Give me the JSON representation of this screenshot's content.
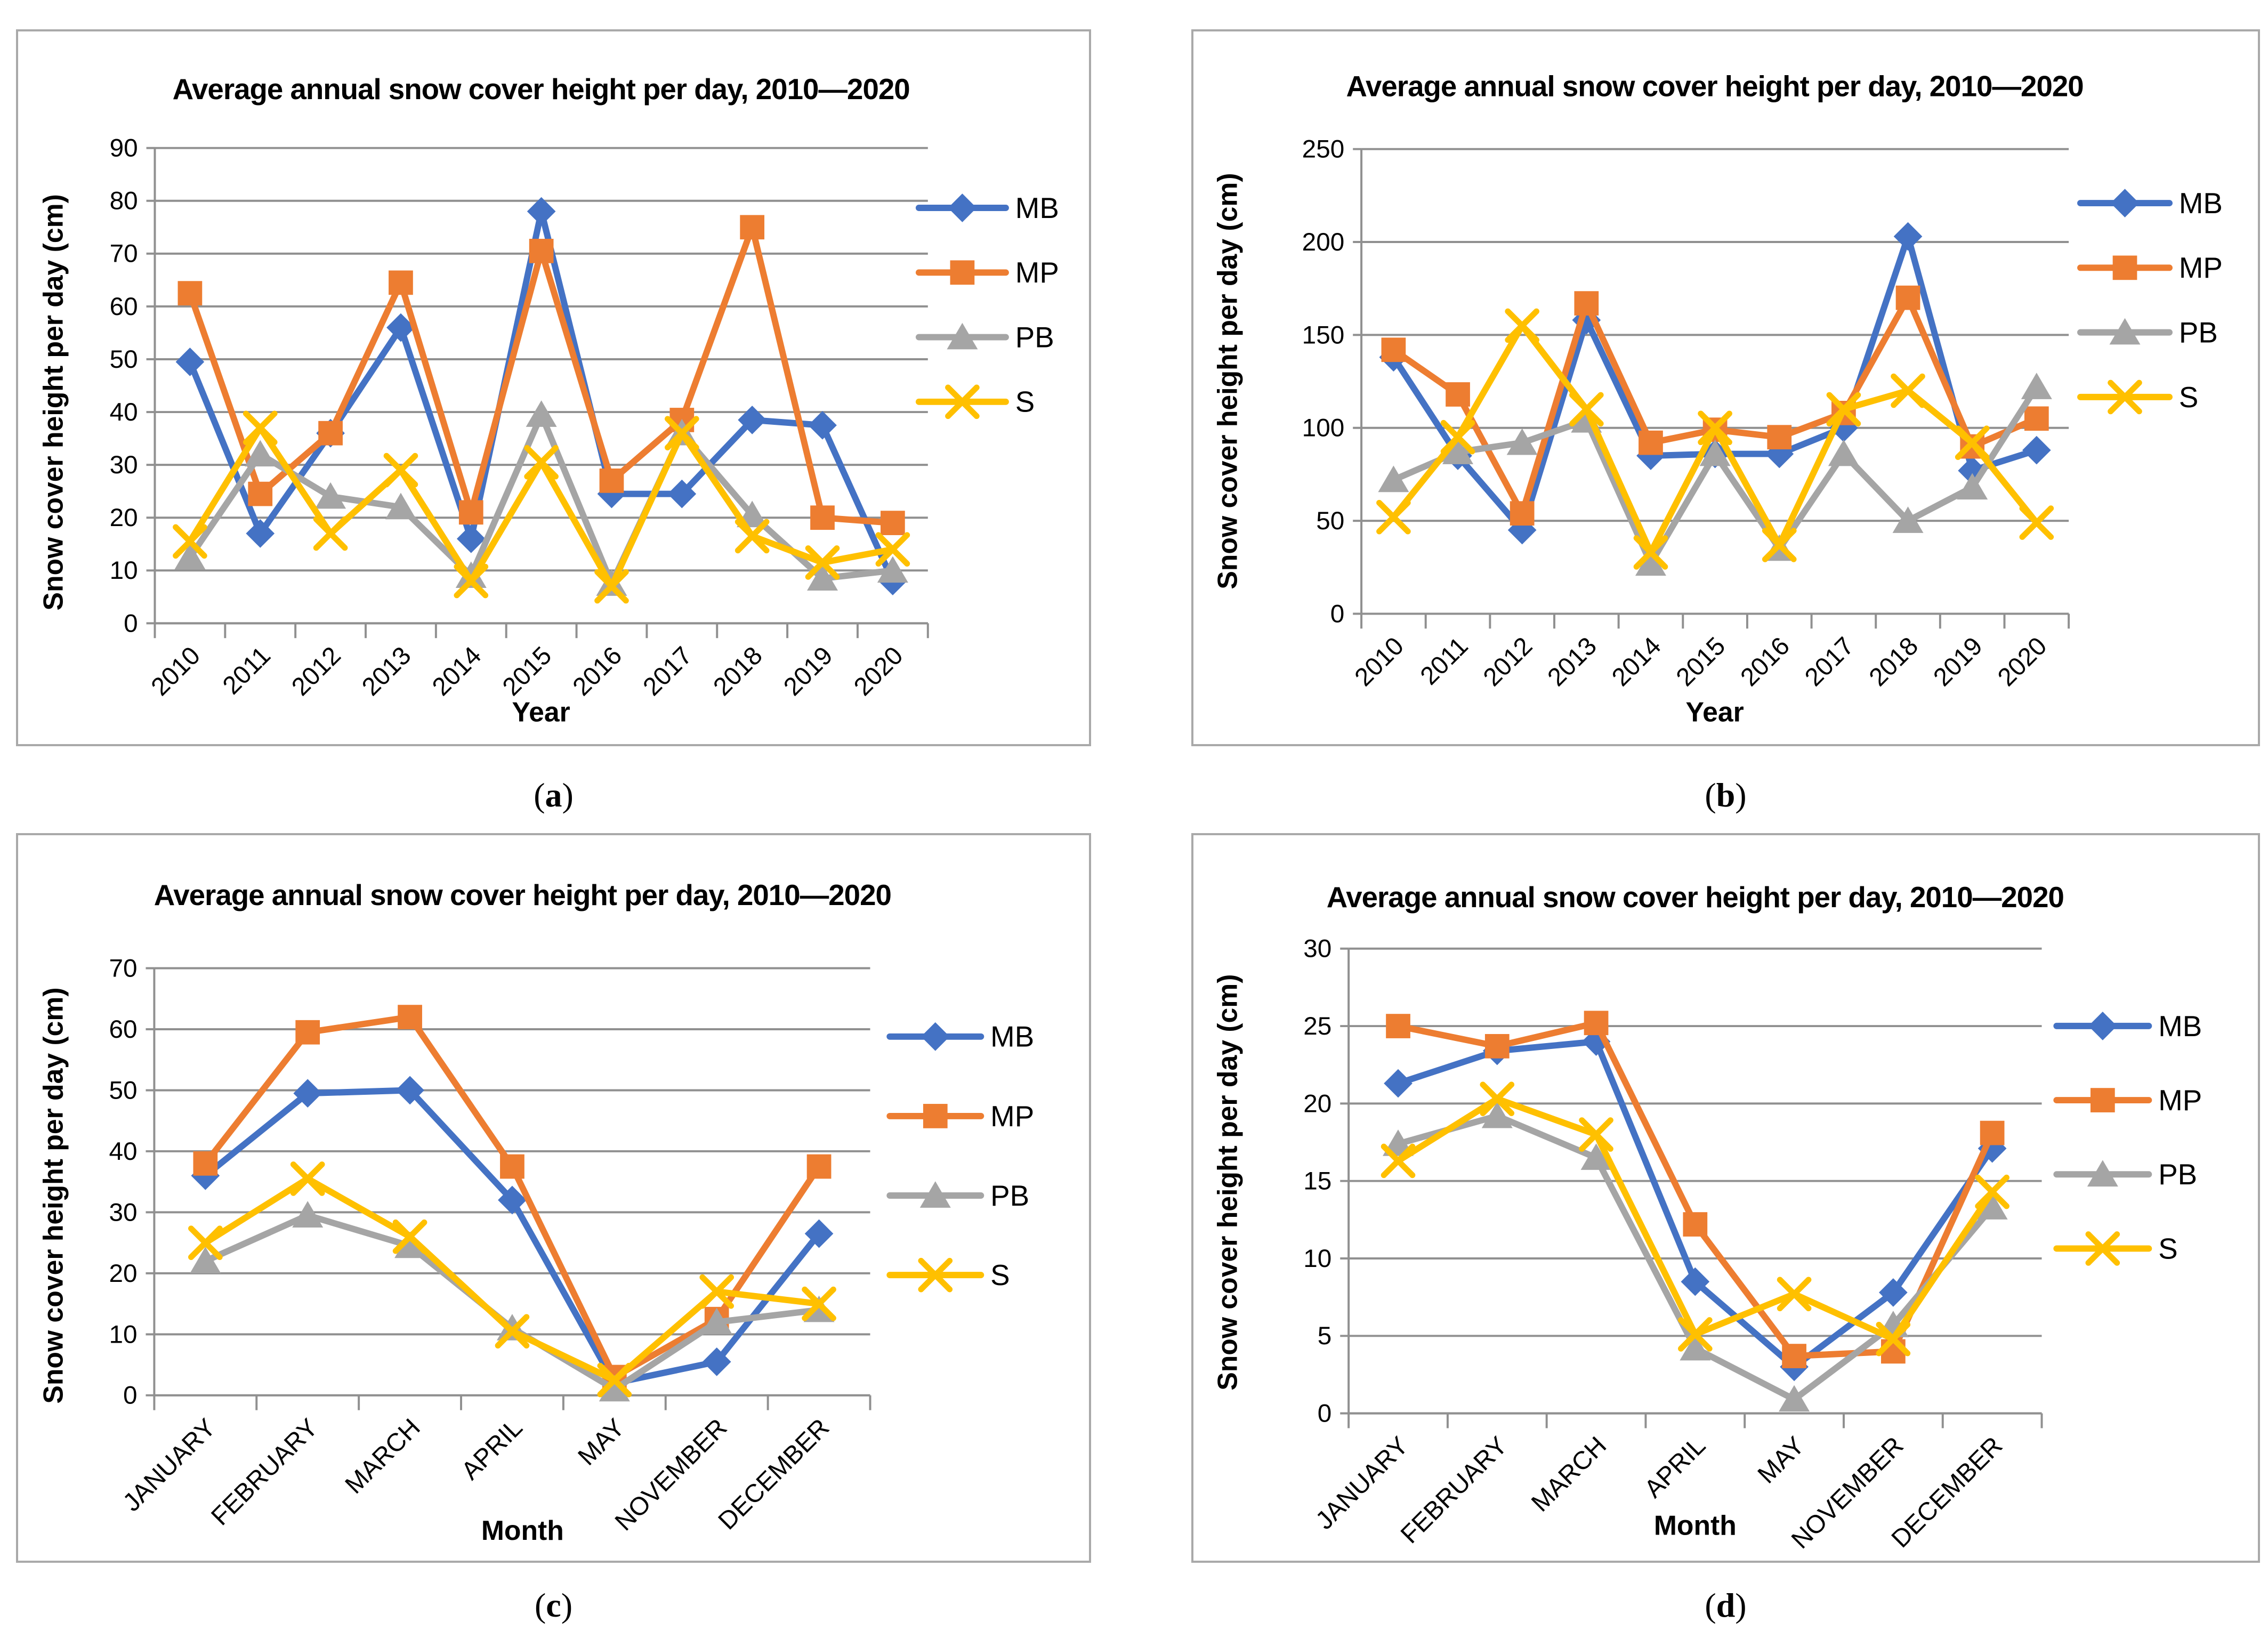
{
  "figure": {
    "captions": [
      {
        "open": "(",
        "letter": "a",
        "close": ")"
      },
      {
        "open": "(",
        "letter": "b",
        "close": ")"
      },
      {
        "open": "(",
        "letter": "c",
        "close": ")"
      },
      {
        "open": "(",
        "letter": "d",
        "close": ")"
      }
    ],
    "colors": {
      "MB": "#4472C4",
      "MP": "#ED7D31",
      "PB": "#A5A5A5",
      "S": "#FFC000"
    },
    "grid_color": "#909090"
  },
  "chart_data": [
    {
      "id": "a",
      "type": "line",
      "title": "Average annual snow cover height per day, 2010—2020",
      "xlabel": "Year",
      "ylabel": "Snow cover height per day (cm)",
      "ylim": [
        0,
        90
      ],
      "y_ticks": [
        0,
        10,
        20,
        30,
        40,
        50,
        60,
        70,
        80,
        90
      ],
      "grid": true,
      "legend_position": "right",
      "categories": [
        "2010",
        "2011",
        "2012",
        "2013",
        "2014",
        "2015",
        "2016",
        "2017",
        "2018",
        "2019",
        "2020"
      ],
      "series": [
        {
          "name": "MB",
          "color": "#4472C4",
          "marker": "diamond",
          "values": [
            49.5,
            17,
            36,
            56,
            16,
            78,
            24.5,
            24.5,
            38.5,
            37.5,
            8
          ]
        },
        {
          "name": "MP",
          "color": "#ED7D31",
          "marker": "square",
          "values": [
            62.5,
            24.5,
            36,
            64.5,
            21,
            70.5,
            27,
            38.5,
            75,
            20,
            19
          ]
        },
        {
          "name": "PB",
          "color": "#A5A5A5",
          "marker": "triangle",
          "values": [
            12.5,
            32,
            24,
            22,
            9,
            39.5,
            7.5,
            36,
            20.5,
            8.5,
            10
          ]
        },
        {
          "name": "S",
          "color": "#FFC000",
          "marker": "x",
          "values": [
            15.5,
            37,
            17,
            29,
            8,
            30.5,
            7,
            36,
            16.5,
            11.5,
            14
          ]
        }
      ]
    },
    {
      "id": "b",
      "type": "line",
      "title": "Average annual snow cover height per day, 2010—2020",
      "xlabel": "Year",
      "ylabel": "Snow cover height per day (cm)",
      "ylim": [
        0,
        250
      ],
      "y_ticks": [
        0,
        50,
        100,
        150,
        200,
        250
      ],
      "grid": true,
      "legend_position": "right",
      "categories": [
        "2010",
        "2011",
        "2012",
        "2013",
        "2014",
        "2015",
        "2016",
        "2017",
        "2018",
        "2019",
        "2020"
      ],
      "series": [
        {
          "name": "MB",
          "color": "#4472C4",
          "marker": "diamond",
          "values": [
            138,
            85,
            45,
            158,
            85,
            86,
            86,
            100,
            203,
            77,
            88
          ]
        },
        {
          "name": "MP",
          "color": "#ED7D31",
          "marker": "square",
          "values": [
            142,
            118,
            54,
            167,
            92,
            99,
            95,
            108,
            170,
            90,
            105
          ]
        },
        {
          "name": "PB",
          "color": "#A5A5A5",
          "marker": "triangle",
          "values": [
            72,
            87,
            92,
            104,
            27,
            86,
            35,
            86,
            50,
            68,
            122
          ]
        },
        {
          "name": "S",
          "color": "#FFC000",
          "marker": "x",
          "values": [
            52,
            95,
            155,
            110,
            33,
            100,
            37,
            110,
            120,
            92,
            49
          ]
        }
      ]
    },
    {
      "id": "c",
      "type": "line",
      "title": "Average annual snow cover height per day, 2010—2020",
      "xlabel": "Month",
      "ylabel": "Snow cover height per day (cm)",
      "ylim": [
        0,
        70
      ],
      "y_ticks": [
        0,
        10,
        20,
        30,
        40,
        50,
        60,
        70
      ],
      "grid": true,
      "legend_position": "right",
      "categories": [
        "JANUARY",
        "FEBRUARY",
        "MARCH",
        "APRIL",
        "MAY",
        "NOVEMBER",
        "DECEMBER"
      ],
      "series": [
        {
          "name": "MB",
          "color": "#4472C4",
          "marker": "diamond",
          "values": [
            36,
            49.5,
            50,
            32,
            2,
            5.5,
            26.5
          ]
        },
        {
          "name": "MP",
          "color": "#ED7D31",
          "marker": "square",
          "values": [
            38,
            59.5,
            62,
            37.5,
            3,
            12.5,
            37.5
          ]
        },
        {
          "name": "PB",
          "color": "#A5A5A5",
          "marker": "triangle",
          "values": [
            22,
            29.5,
            24.5,
            11,
            1,
            12,
            14
          ]
        },
        {
          "name": "S",
          "color": "#FFC000",
          "marker": "x",
          "values": [
            25,
            35.5,
            26,
            10.5,
            2.5,
            17,
            15
          ]
        }
      ]
    },
    {
      "id": "d",
      "type": "line",
      "title": "Average annual snow cover height per day, 2010—2020",
      "xlabel": "Month",
      "ylabel": "Snow cover height per day (cm)",
      "ylim": [
        0,
        30
      ],
      "y_ticks": [
        0,
        5,
        10,
        15,
        20,
        25,
        30
      ],
      "grid": true,
      "legend_position": "right",
      "categories": [
        "JANUARY",
        "FEBRUARY",
        "MARCH",
        "APRIL",
        "MAY",
        "NOVEMBER",
        "DECEMBER"
      ],
      "series": [
        {
          "name": "MB",
          "color": "#4472C4",
          "marker": "diamond",
          "values": [
            21.3,
            23.4,
            24,
            8.5,
            3,
            7.8,
            17.1
          ]
        },
        {
          "name": "MP",
          "color": "#ED7D31",
          "marker": "square",
          "values": [
            25,
            23.7,
            25.2,
            12.2,
            3.7,
            4,
            18.1
          ]
        },
        {
          "name": "PB",
          "color": "#A5A5A5",
          "marker": "triangle",
          "values": [
            17.4,
            19.2,
            16.5,
            4.2,
            0.9,
            5.7,
            13.3
          ]
        },
        {
          "name": "S",
          "color": "#FFC000",
          "marker": "x",
          "values": [
            16.3,
            20.3,
            18,
            5.1,
            7.7,
            4.8,
            14.3
          ]
        }
      ]
    }
  ]
}
